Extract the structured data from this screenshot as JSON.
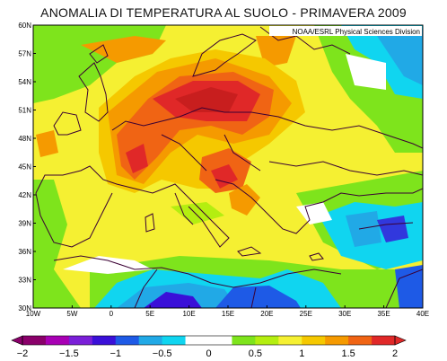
{
  "title": "ANOMALIA DI TEMPERATURA AL SUOLO - PRIMAVERA 2009",
  "credit": "NOAA/ESRL Physical Sciences Division",
  "lat_labels": [
    "30N",
    "33N",
    "36N",
    "39N",
    "42N",
    "45N",
    "48N",
    "51N",
    "54N",
    "57N",
    "60N"
  ],
  "lon_labels": [
    "10W",
    "5W",
    "0",
    "5E",
    "10E",
    "15E",
    "20E",
    "25E",
    "30E",
    "35E",
    "40E"
  ],
  "colorbar": {
    "ticks": [
      "−2",
      "−1.5",
      "−1",
      "−0.5",
      "0",
      "0.5",
      "1",
      "1.5",
      "2"
    ],
    "colors": [
      "#8a006a",
      "#a800b4",
      "#7a1fd8",
      "#3a10d8",
      "#1e5ae6",
      "#21a9e6",
      "#10d5f0",
      "#ffffff",
      "#ffffff",
      "#7ee41c",
      "#b4ee10",
      "#f5f032",
      "#f5c800",
      "#f59a00",
      "#f06414",
      "#e02828"
    ]
  }
}
